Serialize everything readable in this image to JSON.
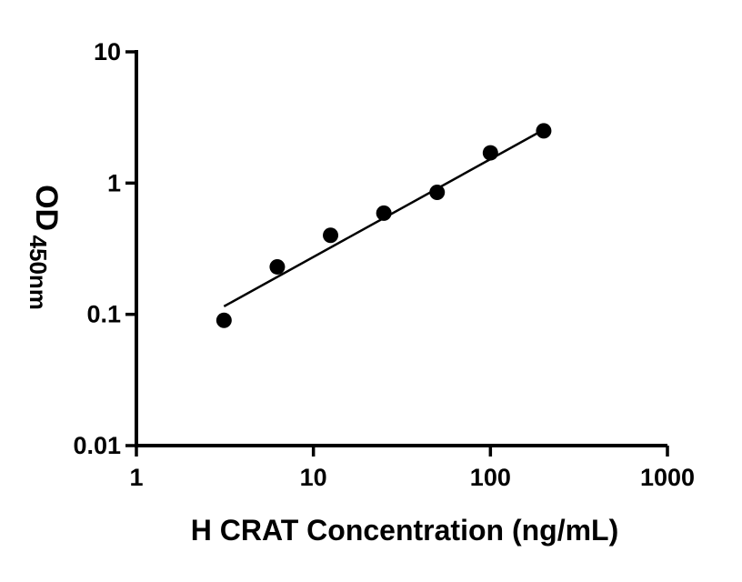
{
  "chart_data": {
    "type": "scatter",
    "title": "",
    "xlabel": "H CRAT Concentration (ng/mL)",
    "ylabel_main": "OD",
    "ylabel_sub": "450nm",
    "x_scale": "log",
    "y_scale": "log",
    "xlim": [
      1,
      1000
    ],
    "ylim": [
      0.01,
      10
    ],
    "x_tick_values": [
      1,
      10,
      100,
      1000
    ],
    "x_tick_labels": [
      "1",
      "10",
      "100",
      "1000"
    ],
    "y_tick_values": [
      0.01,
      0.1,
      1,
      10
    ],
    "y_tick_labels": [
      "0.01",
      "0.1",
      "1",
      "10"
    ],
    "grid": false,
    "legend": null,
    "marker": "filled-circle",
    "marker_color": "#000000",
    "line_color": "#000000",
    "axis_color": "#000000",
    "background_color": "#ffffff",
    "series": [
      {
        "name": "standard-curve-points",
        "points": [
          {
            "x": 3.125,
            "y": 0.09
          },
          {
            "x": 6.25,
            "y": 0.23
          },
          {
            "x": 12.5,
            "y": 0.4
          },
          {
            "x": 25,
            "y": 0.59
          },
          {
            "x": 50,
            "y": 0.85
          },
          {
            "x": 100,
            "y": 1.7
          },
          {
            "x": 200,
            "y": 2.5
          }
        ]
      }
    ],
    "fit_line": {
      "x1": 3.125,
      "y1": 0.115,
      "x2": 200,
      "y2": 2.55
    }
  }
}
